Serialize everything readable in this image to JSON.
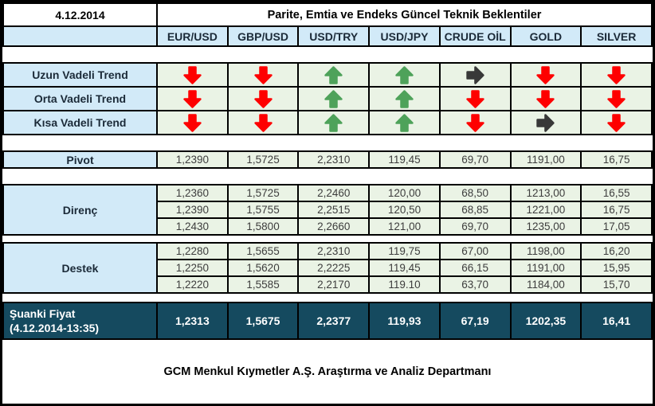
{
  "meta": {
    "date": "4.12.2014",
    "title": "Parite, Emtia ve Endeks Güncel Teknik Beklentiler"
  },
  "columns": [
    "EUR/USD",
    "GBP/USD",
    "USD/TRY",
    "USD/JPY",
    "CRUDE OİL",
    "GOLD",
    "SILVER"
  ],
  "trend": {
    "rows": [
      {
        "label": "Uzun Vadeli Trend",
        "arrows": [
          "down-red",
          "down-red",
          "up-green",
          "up-green",
          "right-dark",
          "down-red",
          "down-red"
        ]
      },
      {
        "label": "Orta Vadeli Trend",
        "arrows": [
          "down-red",
          "down-red",
          "up-green",
          "up-green",
          "down-red",
          "down-red",
          "down-red"
        ]
      },
      {
        "label": "Kısa Vadeli Trend",
        "arrows": [
          "down-red",
          "down-red",
          "up-green",
          "up-green",
          "down-red",
          "right-dark",
          "down-red"
        ]
      }
    ]
  },
  "pivot": {
    "label": "Pivot",
    "values": [
      "1,2390",
      "1,5725",
      "2,2310",
      "119,45",
      "69,70",
      "1191,00",
      "16,75"
    ]
  },
  "resistance": {
    "label": "Direnç",
    "rows": [
      [
        "1,2360",
        "1,5725",
        "2,2460",
        "120,00",
        "68,50",
        "1213,00",
        "16,55"
      ],
      [
        "1,2390",
        "1,5755",
        "2,2515",
        "120,50",
        "68,85",
        "1221,00",
        "16,75"
      ],
      [
        "1,2430",
        "1,5800",
        "2,2660",
        "121,00",
        "69,70",
        "1235,00",
        "17,05"
      ]
    ]
  },
  "support": {
    "label": "Destek",
    "rows": [
      [
        "1,2280",
        "1,5655",
        "2,2310",
        "119,75",
        "67,00",
        "1198,00",
        "16,20"
      ],
      [
        "1,2250",
        "1,5620",
        "2,2225",
        "119,45",
        "66,15",
        "1191,00",
        "15,95"
      ],
      [
        "1,2220",
        "1,5585",
        "2,2170",
        "119.10",
        "63,70",
        "1184,00",
        "15,70"
      ]
    ]
  },
  "current": {
    "label_line1": "Şuanki Fiyat",
    "label_line2": "(4.12.2014-13:35)",
    "values": [
      "1,2313",
      "1,5675",
      "2,2377",
      "119,93",
      "67,19",
      "1202,35",
      "16,41"
    ]
  },
  "footer": "GCM Menkul Kıymetler A.Ş. Araştırma ve Analiz Departmanı",
  "colors": {
    "light_blue": "#d2eaf8",
    "light_green": "#eaf3e5",
    "dark_teal": "#154a5f",
    "arrow_red": "#fe0000",
    "arrow_green": "#4ea25a",
    "arrow_dark": "#383838"
  }
}
